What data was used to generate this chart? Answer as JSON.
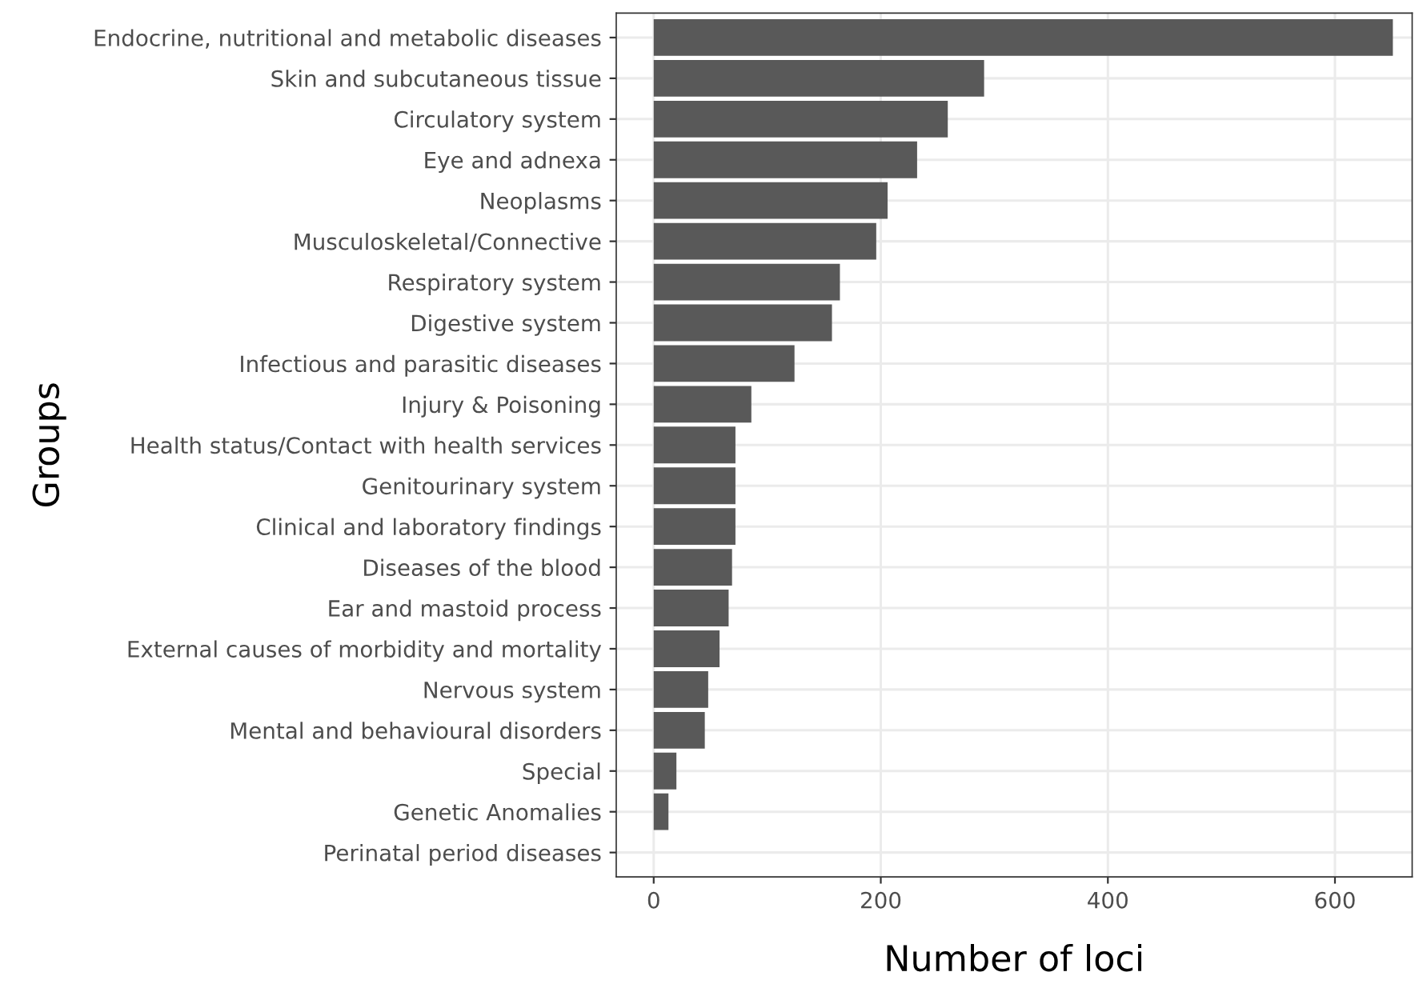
{
  "chart_data": {
    "type": "bar",
    "orientation": "horizontal",
    "xlabel": "Number of loci",
    "ylabel": "Groups",
    "categories": [
      "Endocrine, nutritional and metabolic diseases",
      "Skin and subcutaneous tissue",
      "Circulatory system",
      "Eye and adnexa",
      "Neoplasms",
      "Musculoskeletal/Connective",
      "Respiratory system",
      "Digestive system",
      "Infectious and parasitic diseases",
      "Injury & Poisoning",
      "Health status/Contact with health services",
      "Genitourinary system",
      "Clinical and laboratory findings",
      "Diseases of the blood",
      "Ear and mastoid process",
      "External causes of morbidity and mortality",
      "Nervous system",
      "Mental and behavioural disorders",
      "Special",
      "Genetic Anomalies",
      "Perinatal period diseases"
    ],
    "values": [
      651,
      291,
      259,
      232,
      206,
      196,
      164,
      157,
      124,
      86,
      72,
      72,
      72,
      69,
      66,
      58,
      48,
      45,
      20,
      13,
      0
    ],
    "color": "#595959",
    "xlim": [
      -33,
      668
    ],
    "xticks": [
      0,
      200,
      400,
      600
    ],
    "grid": true
  }
}
